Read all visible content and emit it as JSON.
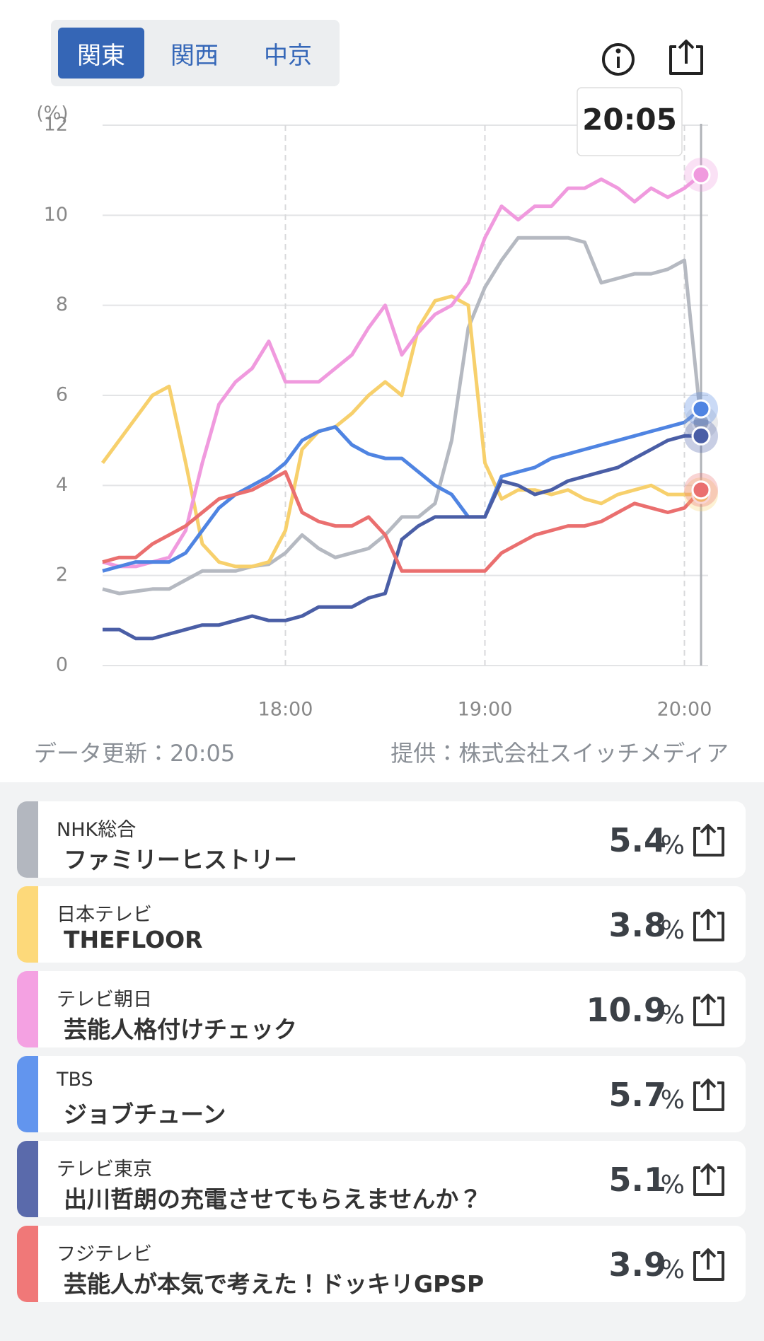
{
  "tabs": [
    "関東",
    "関西",
    "中京"
  ],
  "chart_data": {
    "type": "line",
    "y_label": "(%)",
    "tooltip": "20:05",
    "grid": true,
    "x": [
      "17:05",
      "17:10",
      "17:15",
      "17:20",
      "17:25",
      "17:30",
      "17:35",
      "17:40",
      "17:45",
      "17:50",
      "17:55",
      "18:00",
      "18:05",
      "18:10",
      "18:15",
      "18:20",
      "18:25",
      "18:30",
      "18:35",
      "18:40",
      "18:45",
      "18:50",
      "18:55",
      "19:00",
      "19:05",
      "19:10",
      "19:15",
      "19:20",
      "19:25",
      "19:30",
      "19:35",
      "19:40",
      "19:45",
      "19:50",
      "19:55",
      "20:00",
      "20:05"
    ],
    "xlim": [
      "17:05",
      "20:05"
    ],
    "xticks": [
      "18:00",
      "19:00",
      "20:00"
    ],
    "ylim": [
      0,
      12
    ],
    "yticks": [
      0,
      2,
      4,
      6,
      8,
      10,
      12
    ],
    "series": [
      {
        "name": "NHK総合",
        "color": "#b5b9c1",
        "values": [
          1.7,
          1.6,
          1.65,
          1.7,
          1.7,
          1.9,
          2.1,
          2.1,
          2.1,
          2.2,
          2.25,
          2.5,
          2.9,
          2.6,
          2.4,
          2.5,
          2.6,
          2.9,
          3.3,
          3.3,
          3.6,
          5.0,
          7.5,
          8.4,
          9.0,
          9.5,
          9.5,
          9.5,
          9.5,
          9.4,
          8.5,
          8.6,
          8.7,
          8.7,
          8.8,
          9.0,
          5.4
        ]
      },
      {
        "name": "日本テレビ",
        "color": "#f7d06c",
        "values": [
          4.5,
          5.0,
          5.5,
          6.0,
          6.2,
          4.5,
          2.7,
          2.3,
          2.2,
          2.2,
          2.3,
          3.0,
          4.8,
          5.2,
          5.3,
          5.6,
          6.0,
          6.3,
          6.0,
          7.5,
          8.1,
          8.2,
          8.0,
          4.5,
          3.7,
          3.9,
          3.9,
          3.8,
          3.9,
          3.7,
          3.6,
          3.8,
          3.9,
          4.0,
          3.8,
          3.8,
          3.8
        ]
      },
      {
        "name": "テレビ朝日",
        "color": "#f09ade",
        "values": [
          2.3,
          2.2,
          2.2,
          2.3,
          2.4,
          3.0,
          4.5,
          5.8,
          6.3,
          6.6,
          7.2,
          6.3,
          6.3,
          6.3,
          6.6,
          6.9,
          7.5,
          8.0,
          6.9,
          7.4,
          7.8,
          8.0,
          8.5,
          9.5,
          10.2,
          9.9,
          10.2,
          10.2,
          10.6,
          10.6,
          10.8,
          10.6,
          10.3,
          10.6,
          10.4,
          10.6,
          10.9
        ]
      },
      {
        "name": "TBS",
        "color": "#4f84e2",
        "values": [
          2.1,
          2.2,
          2.3,
          2.3,
          2.3,
          2.5,
          3.0,
          3.5,
          3.8,
          4.0,
          4.2,
          4.5,
          5.0,
          5.2,
          5.3,
          4.9,
          4.7,
          4.6,
          4.6,
          4.3,
          4.0,
          3.8,
          3.3,
          3.3,
          4.2,
          4.3,
          4.4,
          4.6,
          4.7,
          4.8,
          4.9,
          5.0,
          5.1,
          5.2,
          5.3,
          5.4,
          5.7
        ]
      },
      {
        "name": "テレビ東京",
        "color": "#4a5ea6",
        "values": [
          0.8,
          0.8,
          0.6,
          0.6,
          0.7,
          0.8,
          0.9,
          0.9,
          1.0,
          1.1,
          1.0,
          1.0,
          1.1,
          1.3,
          1.3,
          1.3,
          1.5,
          1.6,
          2.8,
          3.1,
          3.3,
          3.3,
          3.3,
          3.3,
          4.1,
          4.0,
          3.8,
          3.9,
          4.1,
          4.2,
          4.3,
          4.4,
          4.6,
          4.8,
          5.0,
          5.1,
          5.1
        ]
      },
      {
        "name": "フジテレビ",
        "color": "#ea6f6f",
        "values": [
          2.3,
          2.4,
          2.4,
          2.7,
          2.9,
          3.1,
          3.4,
          3.7,
          3.8,
          3.9,
          4.1,
          4.3,
          3.4,
          3.2,
          3.1,
          3.1,
          3.3,
          2.9,
          2.1,
          2.1,
          2.1,
          2.1,
          2.1,
          2.1,
          2.5,
          2.7,
          2.9,
          3.0,
          3.1,
          3.1,
          3.2,
          3.4,
          3.6,
          3.5,
          3.4,
          3.5,
          3.9
        ]
      }
    ]
  },
  "footer": {
    "update": "データ更新：20:05",
    "source": "提供：株式会社スイッチメディア"
  },
  "rating_unit": "%",
  "programs": [
    {
      "channel": "NHK総合",
      "title": "ファミリーヒストリー",
      "rating": 5.4,
      "color": "#b3b7bf"
    },
    {
      "channel": "日本テレビ",
      "title": "THEFLOOR",
      "rating": 3.8,
      "color": "#fdd97a"
    },
    {
      "channel": "テレビ朝日",
      "title": "芸能人格付けチェック",
      "rating": 10.9,
      "color": "#f4a1e2"
    },
    {
      "channel": "TBS",
      "title": "ジョブチューン",
      "rating": 5.7,
      "color": "#6295ee"
    },
    {
      "channel": "テレビ東京",
      "title": "出川哲朗の充電させてもらえませんか？",
      "rating": 5.1,
      "color": "#5a6aab"
    },
    {
      "channel": "フジテレビ",
      "title": "芸能人が本気で考えた！ドッキリGPSP",
      "rating": 3.9,
      "color": "#f07878"
    }
  ]
}
